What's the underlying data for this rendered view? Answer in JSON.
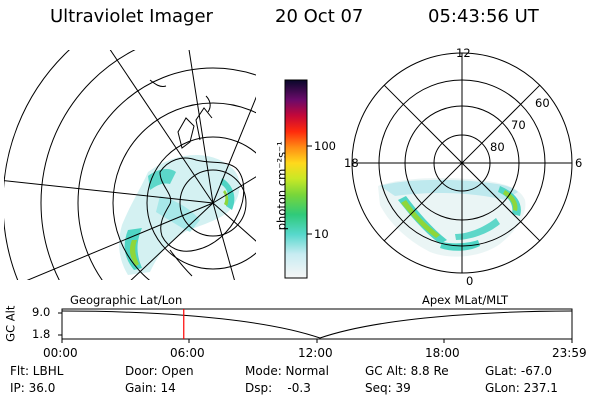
{
  "header": {
    "title": "Ultraviolet Imager",
    "date": "20 Oct 07",
    "time": "05:43:56 UT"
  },
  "geo_panel": {
    "label": "Geographic Lat/Lon"
  },
  "apex_panel": {
    "label": "Apex MLat/MLT",
    "mlt_labels": {
      "top": "12",
      "left": "18",
      "right": "6",
      "bottom": "0"
    },
    "lat_labels": [
      "60",
      "70",
      "80"
    ]
  },
  "colorbar": {
    "unit": "photon cm⁻²s⁻¹",
    "ticks": [
      "100",
      "10"
    ]
  },
  "altitude_plot": {
    "axis_label": "GC Alt",
    "y_ticks": [
      "9.0",
      "1.8"
    ],
    "x_ticks": [
      "00:00",
      "06:00",
      "12:00",
      "18:00",
      "23:59"
    ],
    "current_time_marker_hours": 5.73,
    "marker_color": "#ff0000"
  },
  "info": {
    "filter": "Flt: LBHL",
    "door": "Door: Open",
    "mode": "Mode: Normal",
    "gc_alt": "GC Alt: 8.8 Re",
    "glat": "GLat: -67.0",
    "ip": "IP: 36.0",
    "gain": "Gain: 14",
    "dsp": "Dsp:    -0.3",
    "seq": "Seq: 39",
    "glon": "GLon: 237.1"
  }
}
